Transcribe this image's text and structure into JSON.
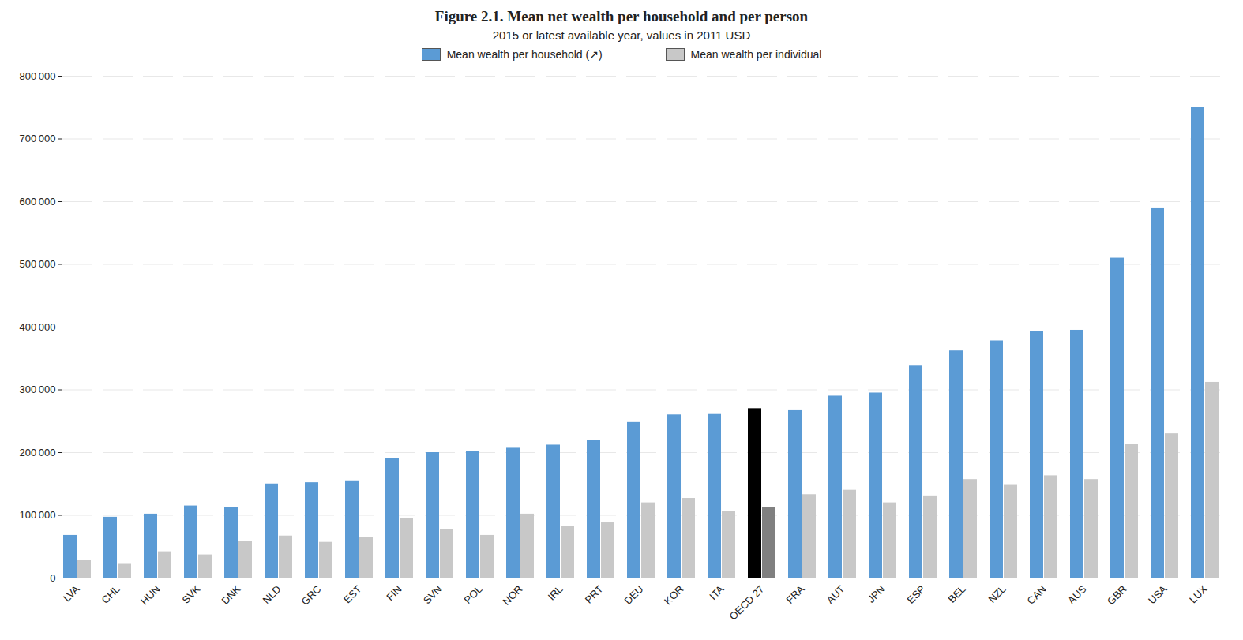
{
  "chart_data": {
    "type": "bar",
    "title": "Figure 2.1. Mean net wealth per household and per person",
    "subtitle": "2015 or latest available year, values in 2011 USD",
    "categories": [
      "LVA",
      "CHL",
      "HUN",
      "SVK",
      "DNK",
      "NLD",
      "GRC",
      "EST",
      "FIN",
      "SVN",
      "POL",
      "NOR",
      "IRL",
      "PRT",
      "DEU",
      "KOR",
      "ITA",
      "OECD 27",
      "FRA",
      "AUT",
      "JPN",
      "ESP",
      "BEL",
      "NZL",
      "CAN",
      "AUS",
      "GBR",
      "USA",
      "LUX"
    ],
    "series": [
      {
        "name": "Mean wealth per household (↗)",
        "color": "#5B9BD5",
        "colors": [
          "#5B9BD5",
          "#5B9BD5",
          "#5B9BD5",
          "#5B9BD5",
          "#5B9BD5",
          "#5B9BD5",
          "#5B9BD5",
          "#5B9BD5",
          "#5B9BD5",
          "#5B9BD5",
          "#5B9BD5",
          "#5B9BD5",
          "#5B9BD5",
          "#5B9BD5",
          "#5B9BD5",
          "#5B9BD5",
          "#5B9BD5",
          "#000000",
          "#5B9BD5",
          "#5B9BD5",
          "#5B9BD5",
          "#5B9BD5",
          "#5B9BD5",
          "#5B9BD5",
          "#5B9BD5",
          "#5B9BD5",
          "#5B9BD5",
          "#5B9BD5",
          "#5B9BD5"
        ],
        "values": [
          68000,
          97000,
          102000,
          115000,
          113000,
          150000,
          152000,
          155000,
          190000,
          200000,
          202000,
          207000,
          212000,
          220000,
          248000,
          260000,
          262000,
          270000,
          268000,
          290000,
          295000,
          338000,
          362000,
          378000,
          393000,
          395000,
          510000,
          590000,
          750000
        ]
      },
      {
        "name": "Mean wealth per individual",
        "color": "#C8C8C8",
        "colors": [
          "#C8C8C8",
          "#C8C8C8",
          "#C8C8C8",
          "#C8C8C8",
          "#C8C8C8",
          "#C8C8C8",
          "#C8C8C8",
          "#C8C8C8",
          "#C8C8C8",
          "#C8C8C8",
          "#C8C8C8",
          "#C8C8C8",
          "#C8C8C8",
          "#C8C8C8",
          "#C8C8C8",
          "#C8C8C8",
          "#C8C8C8",
          "#808080",
          "#C8C8C8",
          "#C8C8C8",
          "#C8C8C8",
          "#C8C8C8",
          "#C8C8C8",
          "#C8C8C8",
          "#C8C8C8",
          "#C8C8C8",
          "#C8C8C8",
          "#C8C8C8",
          "#C8C8C8"
        ],
        "values": [
          28000,
          22000,
          42000,
          37000,
          58000,
          67000,
          57000,
          65000,
          95000,
          78000,
          68000,
          102000,
          83000,
          88000,
          120000,
          127000,
          106000,
          112000,
          133000,
          140000,
          120000,
          131000,
          157000,
          149000,
          163000,
          157000,
          213000,
          230000,
          312000
        ]
      }
    ],
    "ylim": [
      0,
      800000
    ],
    "yticks": [
      0,
      {
        "value": 100000,
        "label": "100 000"
      },
      {
        "value": 200000,
        "label": "200 000"
      },
      {
        "value": 300000,
        "label": "300 000"
      },
      {
        "value": 400000,
        "label": "400 000"
      },
      {
        "value": 500000,
        "label": "500 000"
      },
      {
        "value": 600000,
        "label": "600 000"
      },
      {
        "value": 700000,
        "label": "700 000"
      },
      {
        "value": 800000,
        "label": "800 000"
      }
    ],
    "grid": true,
    "legend": "top"
  }
}
